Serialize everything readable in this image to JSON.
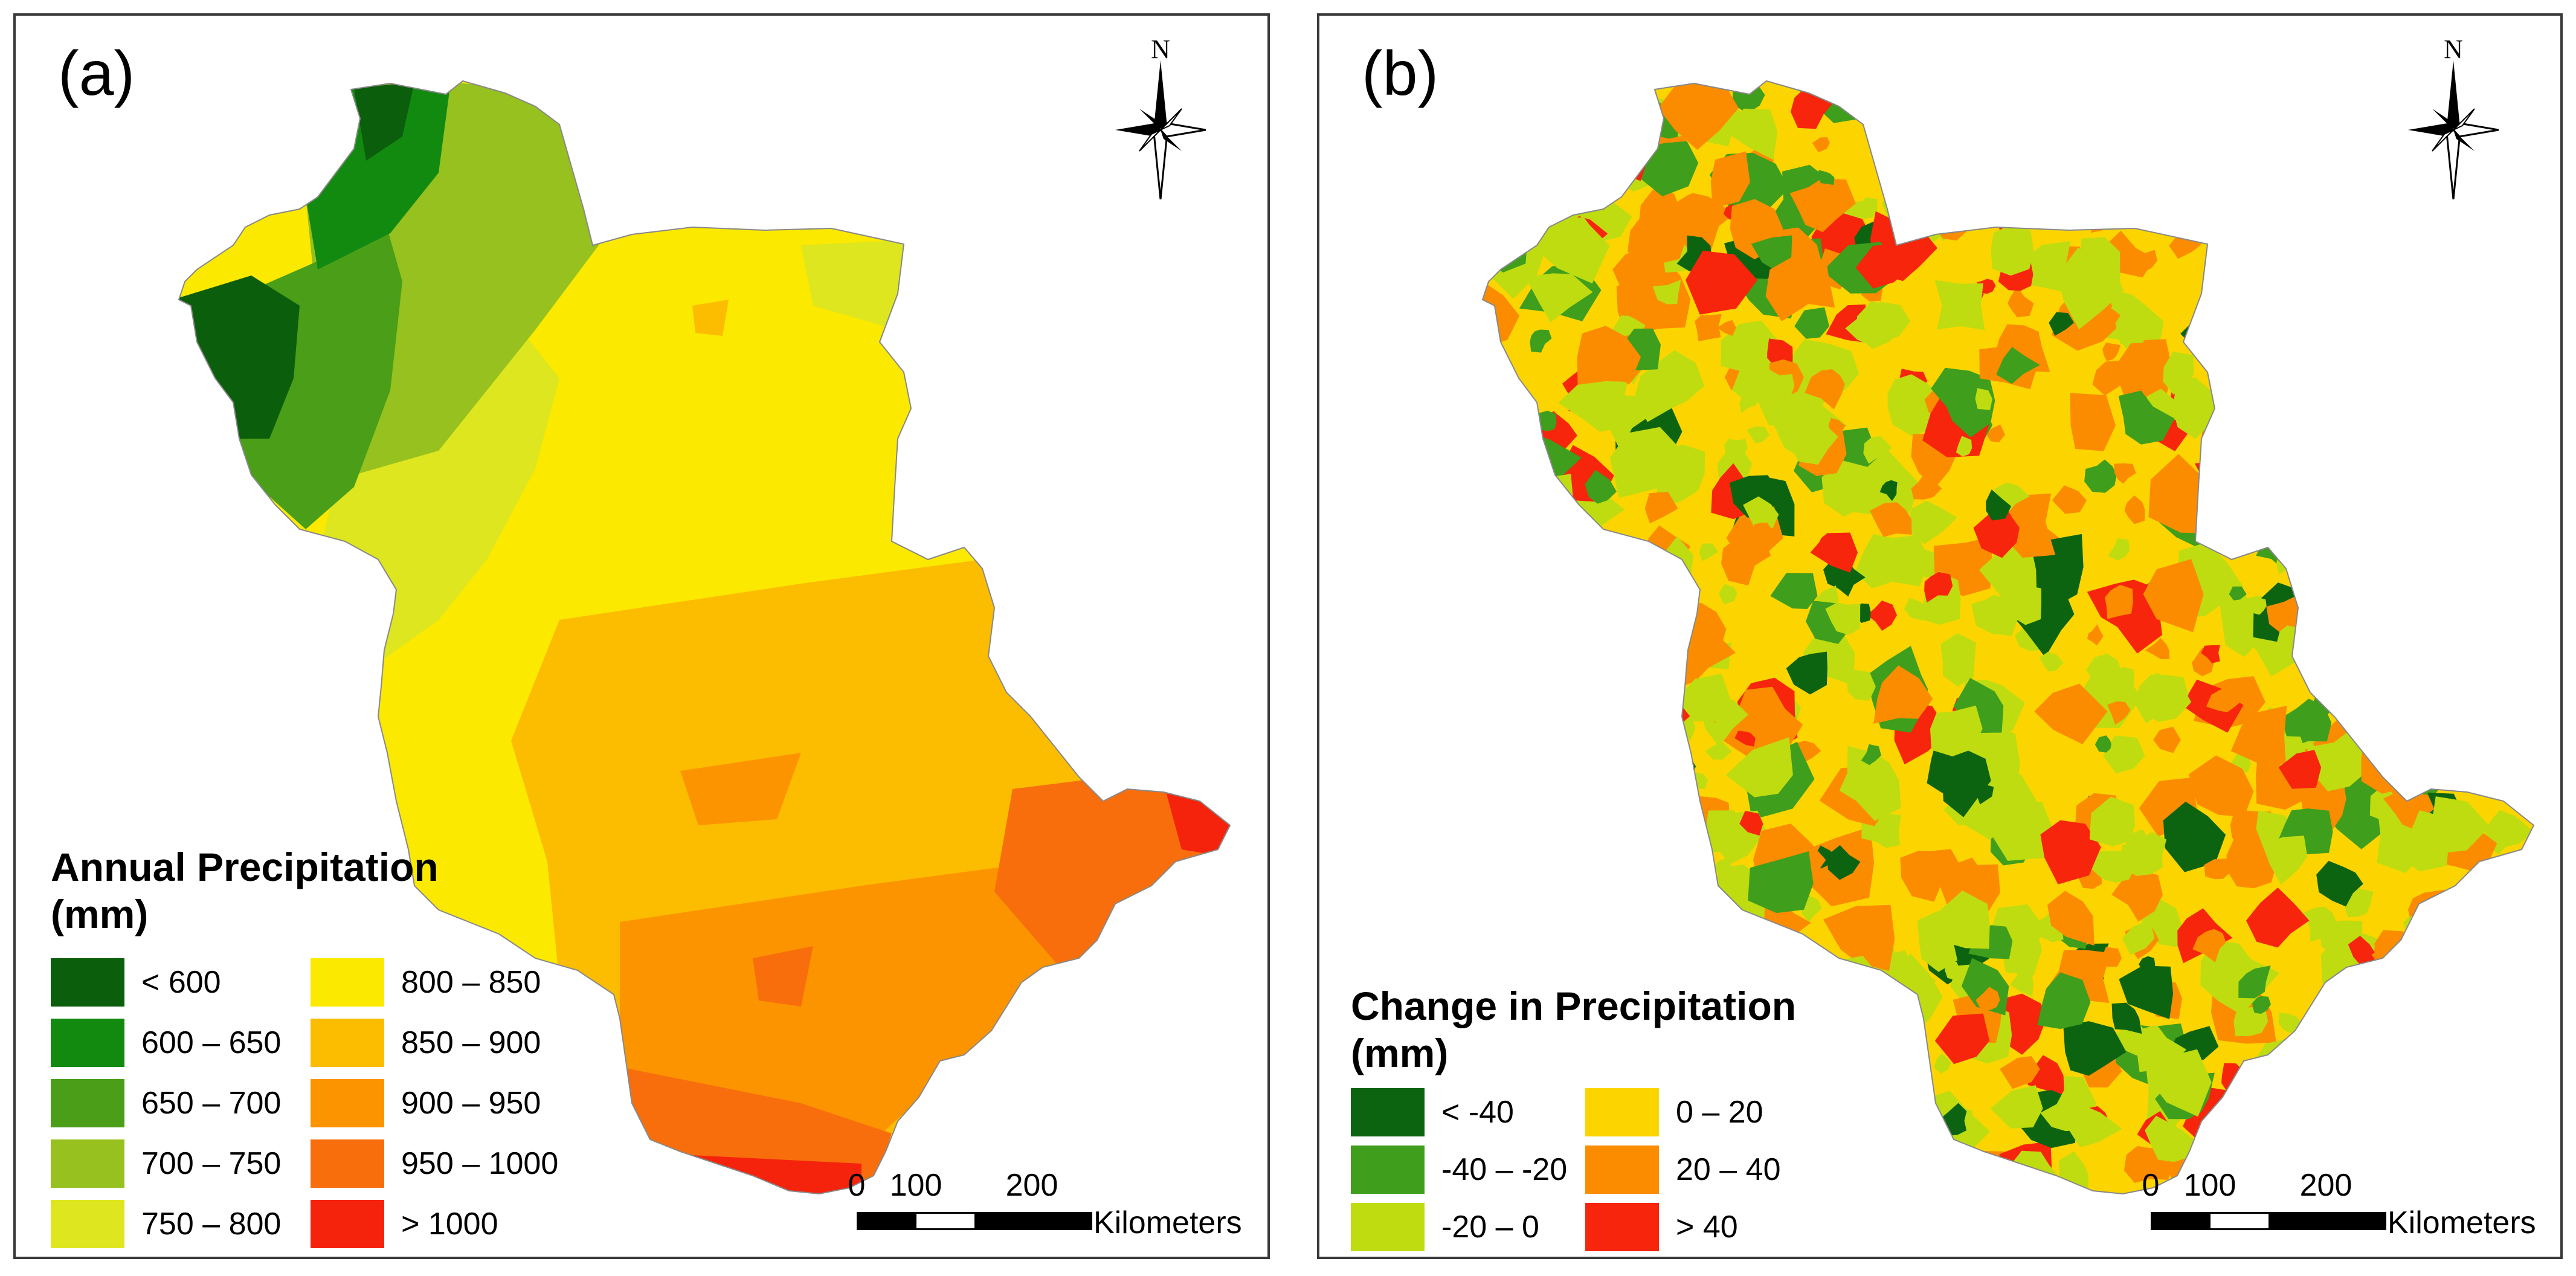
{
  "panels": [
    {
      "label": "(a)",
      "north": "N",
      "legend": {
        "title_line1": "Annual Precipitation",
        "title_line2": "(mm)",
        "items": [
          {
            "label": "< 600",
            "color": "#0b5e0b"
          },
          {
            "label": "600 – 650",
            "color": "#128a10"
          },
          {
            "label": "650 – 700",
            "color": "#4a9e18"
          },
          {
            "label": "700 – 750",
            "color": "#96c11e"
          },
          {
            "label": "750 – 800",
            "color": "#dde61f"
          },
          {
            "label": "800 – 850",
            "color": "#fbe900"
          },
          {
            "label": "850 – 900",
            "color": "#fcbc00"
          },
          {
            "label": "900 – 950",
            "color": "#fc9400"
          },
          {
            "label": "950 – 1000",
            "color": "#f86e0d"
          },
          {
            "label": "> 1000",
            "color": "#f5230c"
          }
        ]
      },
      "scale": {
        "ticks": [
          "0",
          "100",
          "200"
        ],
        "unit": "Kilometers"
      }
    },
    {
      "label": "(b)",
      "north": "N",
      "legend": {
        "title_line1": "Change in Precipitation",
        "title_line2": "(mm)",
        "items": [
          {
            "label": "< -40",
            "color": "#0d6410"
          },
          {
            "label": "-40 – -20",
            "color": "#3f9e1c"
          },
          {
            "label": "-20 – 0",
            "color": "#bfdc10"
          },
          {
            "label": "0 – 20",
            "color": "#fcd500"
          },
          {
            "label": "20 – 40",
            "color": "#fb8c00"
          },
          {
            "label": "> 40",
            "color": "#f6250b"
          }
        ]
      },
      "scale": {
        "ticks": [
          "0",
          "100",
          "200"
        ],
        "unit": "Kilometers"
      }
    }
  ]
}
